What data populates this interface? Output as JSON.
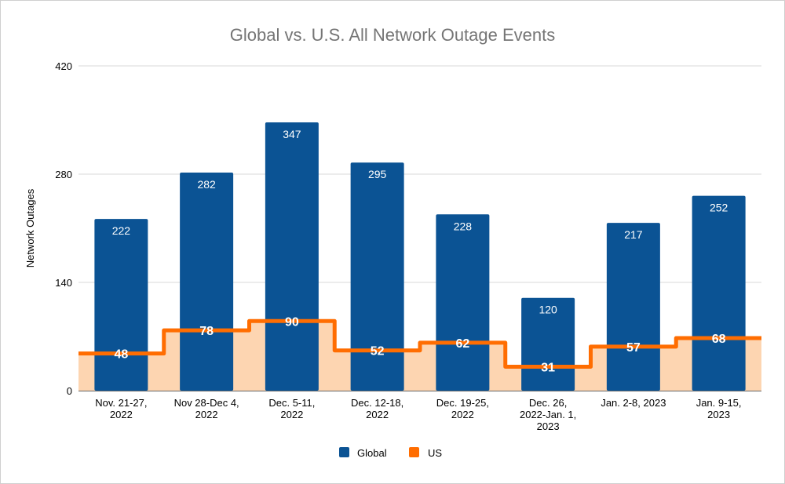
{
  "chart_data": {
    "type": "bar",
    "title": "Global vs. U.S. All Network Outage Events",
    "xlabel": "",
    "ylabel": "Network Outages",
    "ylim": [
      0,
      420
    ],
    "yticks": [
      "0",
      "140",
      "280",
      "420"
    ],
    "grid": true,
    "legend_position": "bottom",
    "categories": [
      [
        "Nov.  21-27,",
        "2022"
      ],
      [
        "Nov 28-Dec 4,",
        "2022"
      ],
      [
        "Dec. 5-11,",
        "2022"
      ],
      [
        "Dec. 12-18,",
        "2022"
      ],
      [
        "Dec. 19-25,",
        "2022"
      ],
      [
        "Dec. 26,",
        "2022-Jan. 1,",
        "2023"
      ],
      [
        "Jan. 2-8, 2023"
      ],
      [
        "Jan. 9-15,",
        "2023"
      ]
    ],
    "series": [
      {
        "name": "Global",
        "type": "bar",
        "color": "#0b5394",
        "values": [
          222,
          282,
          347,
          295,
          228,
          120,
          217,
          252
        ]
      },
      {
        "name": "US",
        "type": "stepped-area",
        "color": "#ff6d01",
        "fill": "#fdd5b1",
        "values": [
          48,
          78,
          90,
          52,
          62,
          31,
          57,
          68
        ]
      }
    ]
  }
}
